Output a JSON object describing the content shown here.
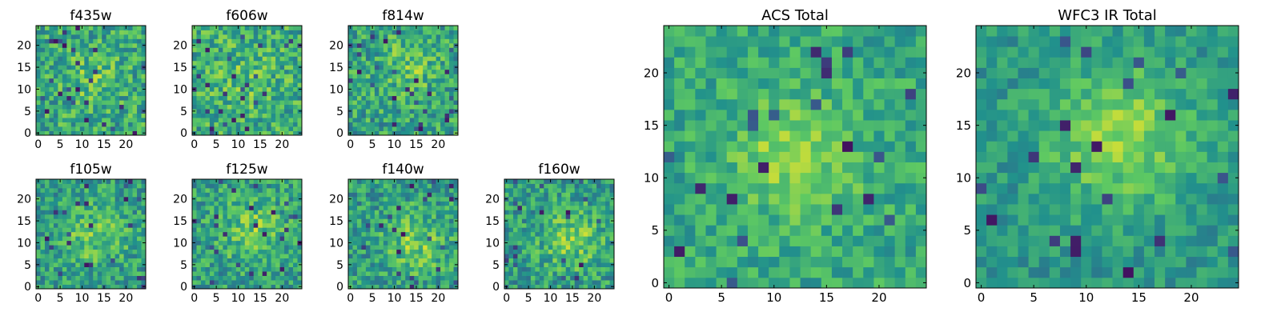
{
  "colormap": "viridis",
  "colormap_stops": [
    "#440154",
    "#3b528b",
    "#21918c",
    "#5ec962",
    "#fde725"
  ],
  "chart_data": [
    {
      "type": "heatmap",
      "title": "f435w",
      "shape": [
        25,
        25
      ],
      "xlim": [
        0,
        24
      ],
      "ylim": [
        0,
        24
      ],
      "xticks": [
        0,
        5,
        10,
        15,
        20
      ],
      "yticks": [
        0,
        5,
        10,
        15,
        20
      ],
      "grid": false,
      "legend": "none",
      "center_row": 12,
      "center_col": 12,
      "blob_sigma": 4.5,
      "blob_strength": 0.12,
      "base_level": 0.6,
      "noise": 0.22,
      "seed": 11
    },
    {
      "type": "heatmap",
      "title": "f606w",
      "shape": [
        25,
        25
      ],
      "xlim": [
        0,
        24
      ],
      "ylim": [
        0,
        24
      ],
      "xticks": [
        0,
        5,
        10,
        15,
        20
      ],
      "yticks": [
        0,
        5,
        10,
        15,
        20
      ],
      "grid": false,
      "legend": "none",
      "center_row": 12,
      "center_col": 12,
      "blob_sigma": 4.5,
      "blob_strength": 0.1,
      "base_level": 0.62,
      "noise": 0.22,
      "seed": 23
    },
    {
      "type": "heatmap",
      "title": "f814w",
      "shape": [
        25,
        25
      ],
      "xlim": [
        0,
        24
      ],
      "ylim": [
        0,
        24
      ],
      "xticks": [
        0,
        5,
        10,
        15,
        20
      ],
      "yticks": [
        0,
        5,
        10,
        15,
        20
      ],
      "grid": false,
      "legend": "none",
      "center_row": 15,
      "center_col": 13,
      "blob_sigma": 4.5,
      "blob_strength": 0.16,
      "base_level": 0.58,
      "noise": 0.22,
      "seed": 37
    },
    {
      "type": "heatmap",
      "title": "f105w",
      "shape": [
        25,
        25
      ],
      "xlim": [
        0,
        24
      ],
      "ylim": [
        0,
        24
      ],
      "xticks": [
        0,
        5,
        10,
        15,
        20
      ],
      "yticks": [
        0,
        5,
        10,
        15,
        20
      ],
      "grid": false,
      "legend": "none",
      "center_row": 12,
      "center_col": 13,
      "blob_sigma": 5.0,
      "blob_strength": 0.2,
      "base_level": 0.55,
      "noise": 0.2,
      "seed": 41
    },
    {
      "type": "heatmap",
      "title": "f125w",
      "shape": [
        25,
        25
      ],
      "xlim": [
        0,
        24
      ],
      "ylim": [
        0,
        24
      ],
      "xticks": [
        0,
        5,
        10,
        15,
        20
      ],
      "yticks": [
        0,
        5,
        10,
        15,
        20
      ],
      "grid": false,
      "legend": "none",
      "center_row": 13,
      "center_col": 13,
      "blob_sigma": 5.0,
      "blob_strength": 0.2,
      "base_level": 0.56,
      "noise": 0.2,
      "seed": 53
    },
    {
      "type": "heatmap",
      "title": "f140w",
      "shape": [
        25,
        25
      ],
      "xlim": [
        0,
        24
      ],
      "ylim": [
        0,
        24
      ],
      "xticks": [
        0,
        5,
        10,
        15,
        20
      ],
      "yticks": [
        0,
        5,
        10,
        15,
        20
      ],
      "grid": false,
      "legend": "none",
      "center_row": 10,
      "center_col": 15,
      "blob_sigma": 5.0,
      "blob_strength": 0.22,
      "base_level": 0.55,
      "noise": 0.2,
      "seed": 67
    },
    {
      "type": "heatmap",
      "title": "f160w",
      "shape": [
        25,
        25
      ],
      "xlim": [
        0,
        24
      ],
      "ylim": [
        0,
        24
      ],
      "xticks": [
        0,
        5,
        10,
        15,
        20
      ],
      "yticks": [
        0,
        5,
        10,
        15,
        20
      ],
      "grid": false,
      "legend": "none",
      "center_row": 11,
      "center_col": 15,
      "blob_sigma": 5.0,
      "blob_strength": 0.22,
      "base_level": 0.55,
      "noise": 0.2,
      "seed": 79
    },
    {
      "type": "heatmap",
      "title": "ACS Total",
      "shape": [
        25,
        25
      ],
      "xlim": [
        0,
        24
      ],
      "ylim": [
        0,
        24
      ],
      "xticks": [
        0,
        5,
        10,
        15,
        20
      ],
      "yticks": [
        0,
        5,
        10,
        15,
        20
      ],
      "grid": false,
      "legend": "none",
      "center_row": 12,
      "center_col": 12,
      "blob_sigma": 4.0,
      "blob_strength": 0.25,
      "base_level": 0.6,
      "noise": 0.15,
      "seed": 97
    },
    {
      "type": "heatmap",
      "title": "WFC3 IR Total",
      "shape": [
        25,
        25
      ],
      "xlim": [
        0,
        24
      ],
      "ylim": [
        0,
        24
      ],
      "xticks": [
        0,
        5,
        10,
        15,
        20
      ],
      "yticks": [
        0,
        5,
        10,
        15,
        20
      ],
      "grid": false,
      "legend": "none",
      "center_row": 14,
      "center_col": 13,
      "blob_sigma": 5.0,
      "blob_strength": 0.3,
      "base_level": 0.52,
      "noise": 0.13,
      "seed": 113
    }
  ]
}
